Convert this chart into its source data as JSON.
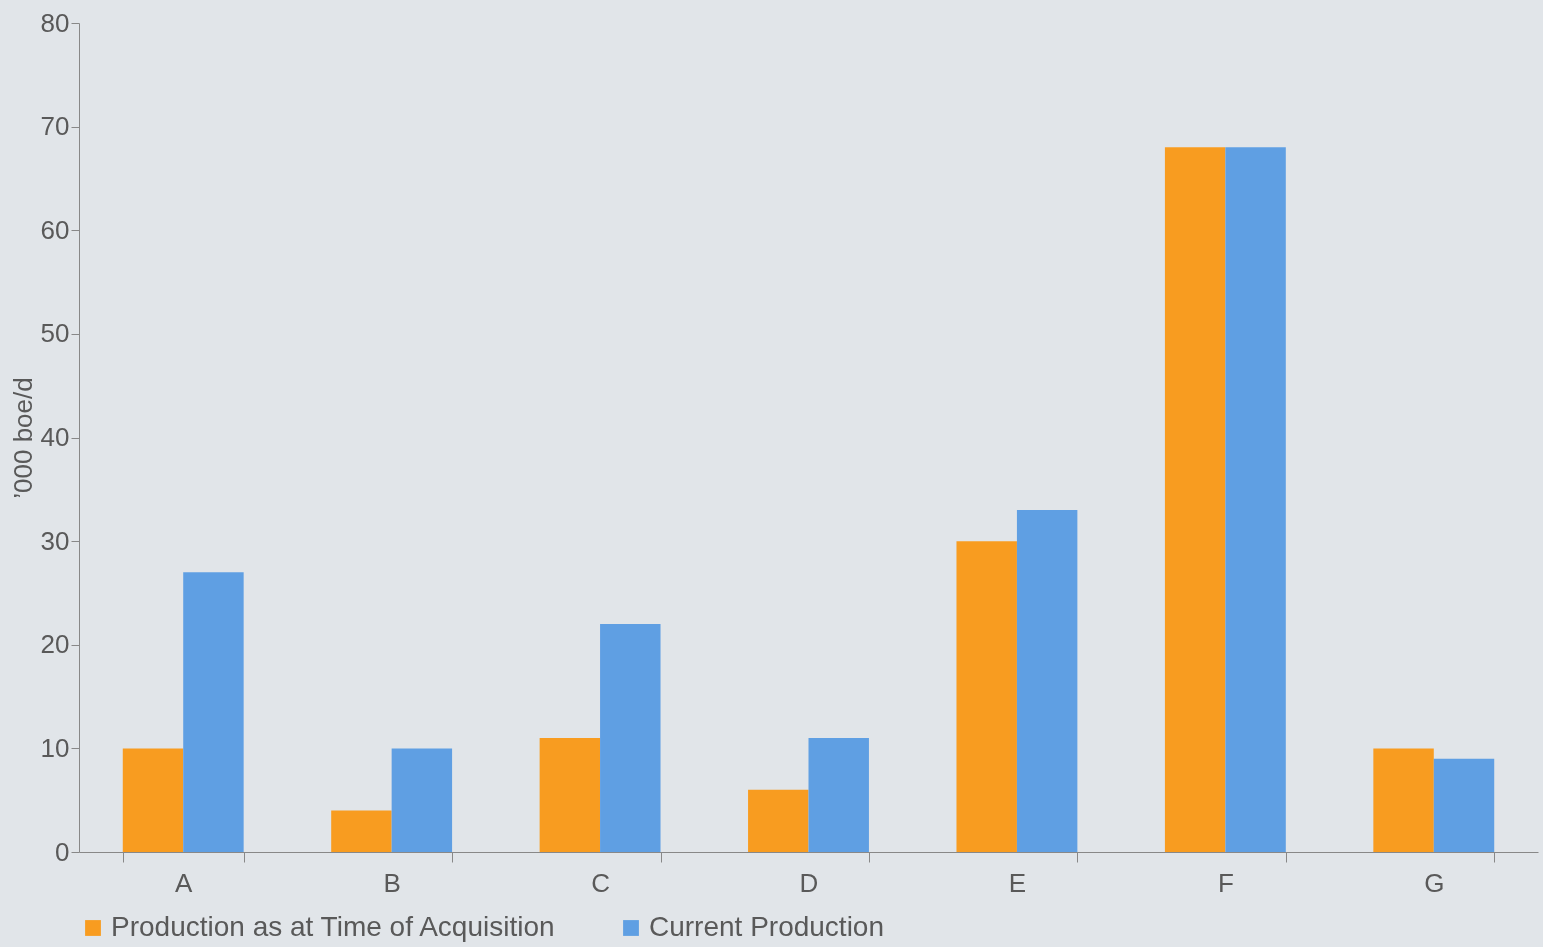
{
  "chart_data": {
    "type": "bar",
    "ylabel": "’000 boe/d",
    "categories": [
      "A",
      "B",
      "C",
      "D",
      "E",
      "F",
      "G"
    ],
    "series": [
      {
        "name": "Production as at Time of Acquisition",
        "color": "#f89c20",
        "values": [
          10,
          4,
          11,
          6,
          30,
          68,
          10
        ]
      },
      {
        "name": "Current Production",
        "color": "#5f9fe3",
        "values": [
          27,
          10,
          22,
          11,
          33,
          68,
          9
        ]
      }
    ],
    "ylim": [
      0,
      80
    ],
    "yticks": [
      0,
      10,
      20,
      30,
      40,
      50,
      60,
      70,
      80
    ],
    "grid": false,
    "legend": "bottom"
  }
}
